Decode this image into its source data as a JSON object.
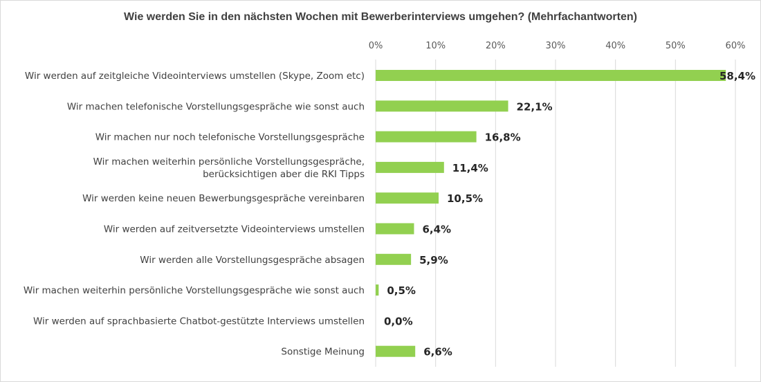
{
  "chart_data": {
    "type": "bar",
    "orientation": "horizontal",
    "title": "Wie werden Sie in den nächsten Wochen mit Bewerberinterviews umgehen? (Mehrfachantworten)",
    "xlabel": "",
    "ylabel": "",
    "xlim": [
      0,
      60
    ],
    "x_ticks": [
      0,
      10,
      20,
      30,
      40,
      50,
      60
    ],
    "x_tick_labels": [
      "0%",
      "10%",
      "20%",
      "30%",
      "40%",
      "50%",
      "60%"
    ],
    "axis_position": "top",
    "grid": true,
    "legend": "none",
    "bar_color": "#92d050",
    "categories": [
      [
        "Wir werden auf zeitgleiche Videointerviews umstellen (Skype, Zoom etc)"
      ],
      [
        "Wir machen telefonische Vorstellungsgespräche wie sonst auch"
      ],
      [
        "Wir machen nur noch telefonische Vorstellungsgespräche"
      ],
      [
        "Wir machen weiterhin persönliche Vorstellungsgespräche,",
        "berücksichtigen aber die RKI Tipps"
      ],
      [
        "Wir werden keine neuen Bewerbungsgespräche vereinbaren"
      ],
      [
        "Wir werden auf zeitversetzte Videointerviews umstellen"
      ],
      [
        "Wir werden alle Vorstellungsgespräche absagen"
      ],
      [
        "Wir machen weiterhin persönliche Vorstellungsgespräche wie sonst auch"
      ],
      [
        "Wir werden auf sprachbasierte Chatbot-gestützte Interviews umstellen"
      ],
      [
        "Sonstige Meinung"
      ]
    ],
    "values": [
      58.4,
      22.1,
      16.8,
      11.4,
      10.5,
      6.4,
      5.9,
      0.5,
      0.0,
      6.6
    ],
    "value_labels": [
      "58,4%",
      "22,1%",
      "16,8%",
      "11,4%",
      "10,5%",
      "6,4%",
      "5,9%",
      "0,5%",
      "0,0%",
      "6,6%"
    ]
  }
}
